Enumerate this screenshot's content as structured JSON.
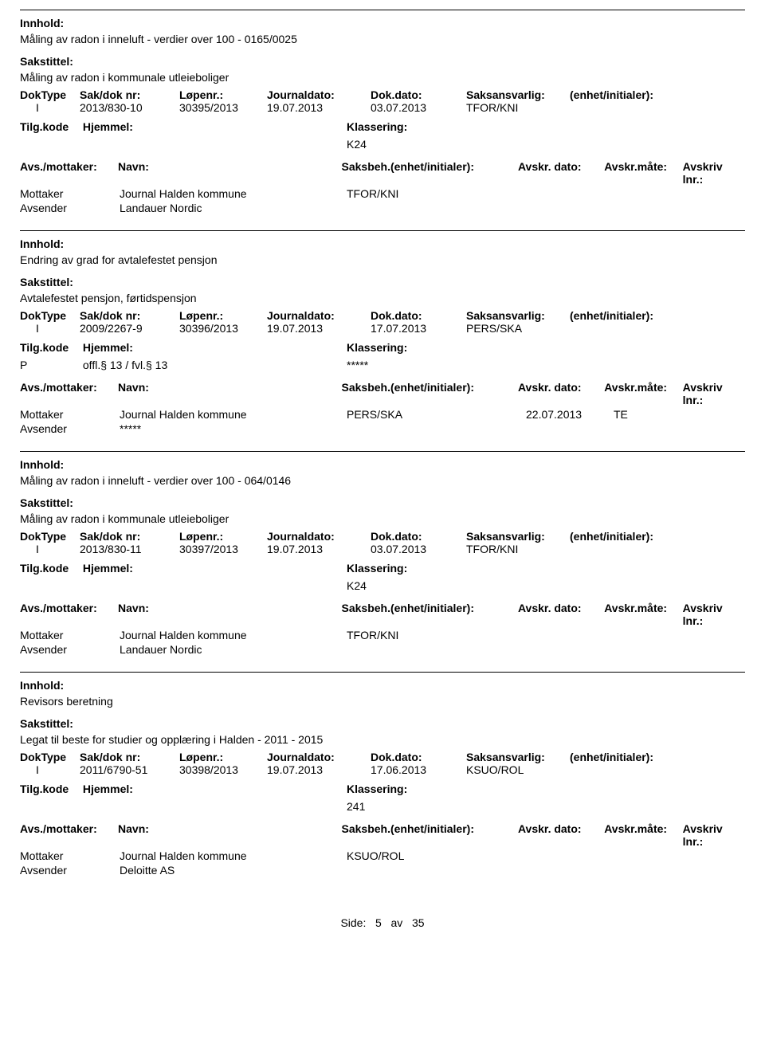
{
  "labels": {
    "innhold": "Innhold:",
    "sakstittel": "Sakstittel:",
    "doktype": "DokType",
    "saknr": "Sak/dok nr:",
    "lopenr": "Løpenr.:",
    "journaldato": "Journaldato:",
    "dokdato": "Dok.dato:",
    "saksansvarlig": "Saksansvarlig:",
    "enhet": "(enhet/initialer):",
    "tilgkode": "Tilg.kode",
    "hjemmel": "Hjemmel:",
    "klassering": "Klassering:",
    "avsmottaker": "Avs./mottaker:",
    "navn": "Navn:",
    "saksbeh": "Saksbeh.(enhet/initialer):",
    "avskrdato": "Avskr. dato:",
    "avskrmate": "Avskr.måte:",
    "avskrivlnr": "Avskriv lnr.:",
    "mottaker": "Mottaker",
    "avsender": "Avsender"
  },
  "records": [
    {
      "innhold": "Måling av radon i inneluft - verdier over 100 - 0165/0025",
      "sakstittel": "Måling av radon i kommunale utleieboliger",
      "doktype": "I",
      "saknr": "2013/830-10",
      "lopenr": "30395/2013",
      "journaldato": "19.07.2013",
      "dokdato": "03.07.2013",
      "saksansvarlig": "TFOR/KNI",
      "tilgkode": "",
      "hjemmel": "",
      "klassering": "K24",
      "parties": [
        {
          "role": "Mottaker",
          "name": "Journal Halden kommune",
          "saksbeh": "TFOR/KNI",
          "avskrdato": "",
          "avskrmate": ""
        },
        {
          "role": "Avsender",
          "name": "Landauer Nordic",
          "saksbeh": "",
          "avskrdato": "",
          "avskrmate": ""
        }
      ]
    },
    {
      "innhold": "Endring av grad for avtalefestet pensjon",
      "sakstittel": "Avtalefestet pensjon, førtidspensjon",
      "doktype": "I",
      "saknr": "2009/2267-9",
      "lopenr": "30396/2013",
      "journaldato": "19.07.2013",
      "dokdato": "17.07.2013",
      "saksansvarlig": "PERS/SKA",
      "tilgkode": "P",
      "hjemmel": "offl.§ 13 / fvl.§ 13",
      "klassering": "*****",
      "parties": [
        {
          "role": "Mottaker",
          "name": "Journal Halden kommune",
          "saksbeh": "PERS/SKA",
          "avskrdato": "22.07.2013",
          "avskrmate": "TE"
        },
        {
          "role": "Avsender",
          "name": "*****",
          "saksbeh": "",
          "avskrdato": "",
          "avskrmate": ""
        }
      ]
    },
    {
      "innhold": "Måling av radon i inneluft - verdier over 100 - 064/0146",
      "sakstittel": "Måling av radon i kommunale utleieboliger",
      "doktype": "I",
      "saknr": "2013/830-11",
      "lopenr": "30397/2013",
      "journaldato": "19.07.2013",
      "dokdato": "03.07.2013",
      "saksansvarlig": "TFOR/KNI",
      "tilgkode": "",
      "hjemmel": "",
      "klassering": "K24",
      "parties": [
        {
          "role": "Mottaker",
          "name": "Journal Halden kommune",
          "saksbeh": "TFOR/KNI",
          "avskrdato": "",
          "avskrmate": ""
        },
        {
          "role": "Avsender",
          "name": "Landauer Nordic",
          "saksbeh": "",
          "avskrdato": "",
          "avskrmate": ""
        }
      ]
    },
    {
      "innhold": "Revisors beretning",
      "sakstittel": "Legat til beste for studier og opplæring i Halden - 2011 - 2015",
      "doktype": "I",
      "saknr": "2011/6790-51",
      "lopenr": "30398/2013",
      "journaldato": "19.07.2013",
      "dokdato": "17.06.2013",
      "saksansvarlig": "KSUO/ROL",
      "tilgkode": "",
      "hjemmel": "",
      "klassering": "241",
      "parties": [
        {
          "role": "Mottaker",
          "name": "Journal Halden kommune",
          "saksbeh": "KSUO/ROL",
          "avskrdato": "",
          "avskrmate": ""
        },
        {
          "role": "Avsender",
          "name": "Deloitte AS",
          "saksbeh": "",
          "avskrdato": "",
          "avskrmate": ""
        }
      ]
    }
  ],
  "footer": {
    "side": "Side:",
    "page": "5",
    "av": "av",
    "total": "35"
  }
}
